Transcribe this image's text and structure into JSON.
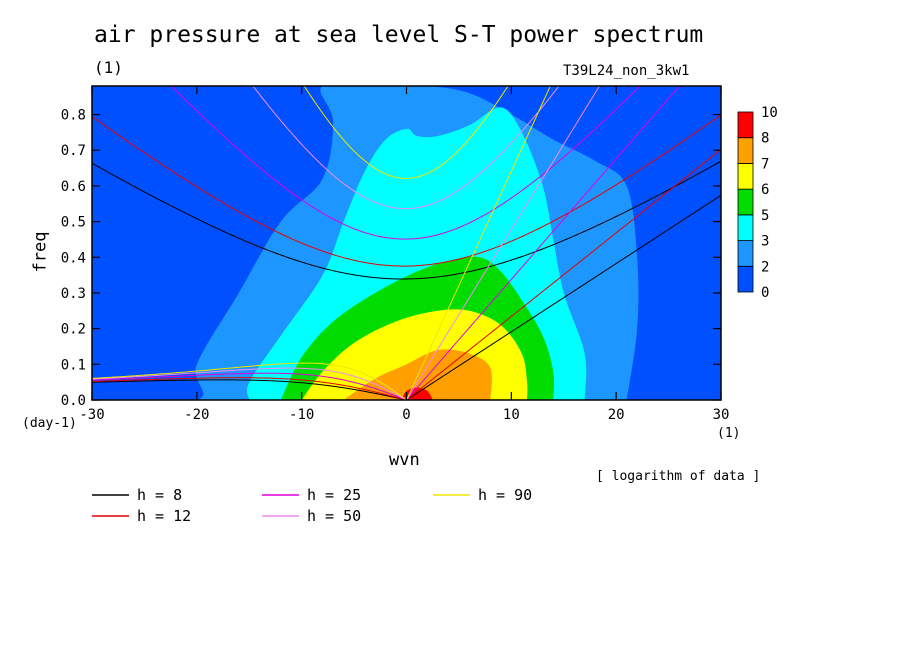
{
  "header": {
    "title": "air pressure at sea level S-T power spectrum",
    "units": "(1)",
    "run_id": "T39L24_non_3kw1"
  },
  "chart_data": {
    "type": "heatmap",
    "title": "air pressure at sea level S-T power spectrum",
    "subtitle": "(1)",
    "xlabel": "wvn",
    "xunits": "(1)",
    "ylabel": "freq",
    "yunits": "(day-1)",
    "xlim": [
      -30,
      30
    ],
    "ylim": [
      0,
      0.88
    ],
    "xticks": [
      -30,
      -20,
      -10,
      0,
      10,
      20,
      30
    ],
    "xtick_labels": [
      "-30",
      "-20",
      "-10",
      "0",
      "10",
      "20",
      "30"
    ],
    "yticks": [
      0.0,
      0.1,
      0.2,
      0.3,
      0.4,
      0.5,
      0.6,
      0.7,
      0.8
    ],
    "ytick_labels": [
      "0.0",
      "0.1",
      "0.2",
      "0.3",
      "0.4",
      "0.5",
      "0.6",
      "0.7",
      "0.8"
    ],
    "note": "[ logarithm of data ]",
    "colorbar": {
      "levels": [
        "0",
        "2",
        "3",
        "5",
        "6",
        "7",
        "8",
        "10"
      ],
      "colors": [
        "#0050ff",
        "#1e96ff",
        "#00ffff",
        "#00dc00",
        "#ffff00",
        "#ffa000",
        "#ff0000"
      ]
    },
    "contour_regions": [
      {
        "level": 1,
        "color": "#1e96ff",
        "points": [
          [
            -30,
            0
          ],
          [
            -20,
            0
          ],
          [
            -20,
            0.1
          ],
          [
            -16,
            0.3
          ],
          [
            -12,
            0.5
          ],
          [
            -8,
            0.62
          ],
          [
            -7,
            0.78
          ],
          [
            -8,
            0.88
          ],
          [
            -2,
            0.88
          ],
          [
            2,
            0.88
          ],
          [
            6,
            0.86
          ],
          [
            10,
            0.8
          ],
          [
            14,
            0.73
          ],
          [
            18,
            0.67
          ],
          [
            21,
            0.6
          ],
          [
            22,
            0.4
          ],
          [
            22,
            0.2
          ],
          [
            21,
            0
          ]
        ]
      },
      {
        "level": 2,
        "color": "#00ffff",
        "points": [
          [
            -15,
            0
          ],
          [
            -15,
            0.05
          ],
          [
            -12,
            0.18
          ],
          [
            -8,
            0.35
          ],
          [
            -6,
            0.5
          ],
          [
            -4,
            0.64
          ],
          [
            -2,
            0.73
          ],
          [
            0,
            0.76
          ],
          [
            1,
            0.74
          ],
          [
            3,
            0.74
          ],
          [
            6,
            0.77
          ],
          [
            9,
            0.82
          ],
          [
            11,
            0.75
          ],
          [
            13,
            0.6
          ],
          [
            14,
            0.45
          ],
          [
            15,
            0.3
          ],
          [
            17,
            0.13
          ],
          [
            17,
            0
          ]
        ]
      },
      {
        "level": 3,
        "color": "#00dc00",
        "points": [
          [
            -12,
            0
          ],
          [
            -10,
            0.12
          ],
          [
            -7,
            0.22
          ],
          [
            -3,
            0.3
          ],
          [
            1,
            0.36
          ],
          [
            4,
            0.39
          ],
          [
            7,
            0.4
          ],
          [
            9,
            0.36
          ],
          [
            11,
            0.28
          ],
          [
            13,
            0.18
          ],
          [
            14,
            0.08
          ],
          [
            14,
            0
          ]
        ]
      },
      {
        "level": 4,
        "color": "#ffff00",
        "points": [
          [
            -10,
            0
          ],
          [
            -8,
            0.08
          ],
          [
            -5,
            0.16
          ],
          [
            -1,
            0.22
          ],
          [
            3,
            0.25
          ],
          [
            6,
            0.25
          ],
          [
            9,
            0.21
          ],
          [
            11,
            0.13
          ],
          [
            11.5,
            0.05
          ],
          [
            11.5,
            0
          ]
        ]
      },
      {
        "level": 5,
        "color": "#ffa000",
        "points": [
          [
            -6,
            0
          ],
          [
            -3,
            0.06
          ],
          [
            0,
            0.1
          ],
          [
            3,
            0.14
          ],
          [
            6,
            0.13
          ],
          [
            8,
            0.09
          ],
          [
            8,
            0
          ]
        ]
      },
      {
        "level": 6,
        "color": "#ff0000",
        "points": [
          [
            -0.5,
            0
          ],
          [
            0,
            0.025
          ],
          [
            1,
            0.035
          ],
          [
            2,
            0.025
          ],
          [
            2.5,
            0
          ]
        ]
      }
    ],
    "series": [
      {
        "name": "h = 8",
        "h": 8,
        "color": "#000000"
      },
      {
        "name": "h = 12",
        "h": 12,
        "color": "#e60000"
      },
      {
        "name": "h = 25",
        "h": 25,
        "color": "#e100e1"
      },
      {
        "name": "h = 50",
        "h": 50,
        "color": "#f08cf0"
      },
      {
        "name": "h = 90",
        "h": 90,
        "color": "#f0e600"
      }
    ]
  }
}
